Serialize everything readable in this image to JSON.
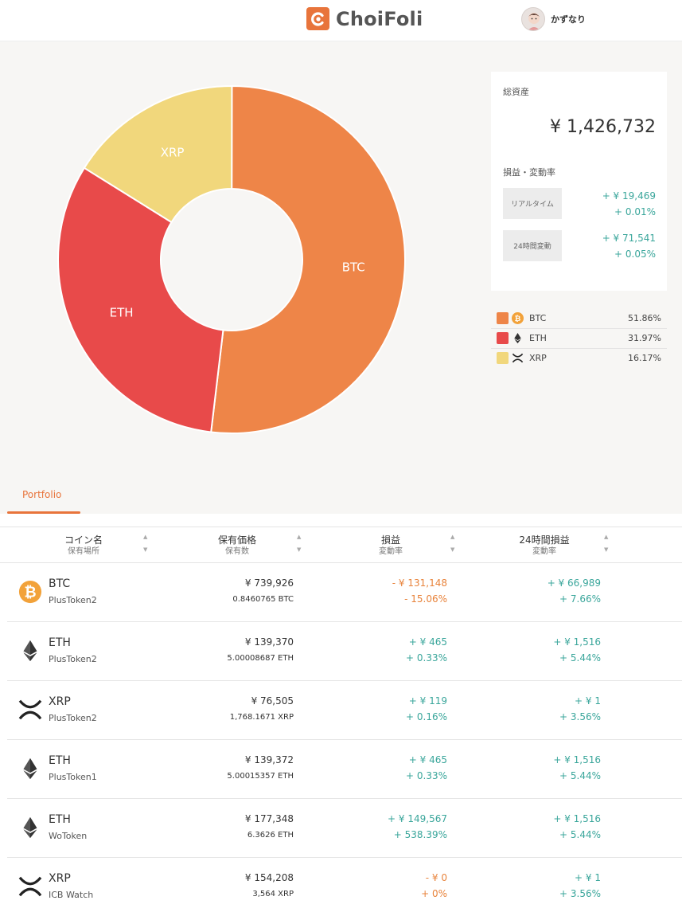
{
  "header": {
    "brand": "ChoiFoli",
    "user_name": "かずなり"
  },
  "colors": {
    "btc": "#ee8548",
    "eth": "#e84a4a",
    "xrp": "#f1d77c",
    "positive": "#3aa69b",
    "negative": "#e8833b",
    "accent": "#e8743b"
  },
  "chart_data": {
    "type": "pie",
    "donut": true,
    "categories": [
      "BTC",
      "ETH",
      "XRP"
    ],
    "values": [
      51.86,
      31.97,
      16.17
    ],
    "colors": [
      "#ee8548",
      "#e84a4a",
      "#f1d77c"
    ],
    "title": "",
    "legend": "right"
  },
  "summary": {
    "total_label": "総資産",
    "total_value": "¥ 1,426,732",
    "change_label": "損益・変動率",
    "realtime_label": "リアルタイム",
    "realtime_amount": "+ ¥ 19,469",
    "realtime_rate": "+ 0.01%",
    "day_label": "24時間変動",
    "day_amount": "+ ¥ 71,541",
    "day_rate": "+ 0.05%"
  },
  "legend": [
    {
      "symbol": "BTC",
      "icon": "bitcoin-icon",
      "percent": "51.86%"
    },
    {
      "symbol": "ETH",
      "icon": "ethereum-icon",
      "percent": "31.97%"
    },
    {
      "symbol": "XRP",
      "icon": "xrp-icon",
      "percent": "16.17%"
    }
  ],
  "tabs": {
    "portfolio": "Portfolio"
  },
  "table": {
    "headers": [
      {
        "main": "コイン名",
        "sub": "保有場所"
      },
      {
        "main": "保有価格",
        "sub": "保有数"
      },
      {
        "main": "損益",
        "sub": "変動率"
      },
      {
        "main": "24時間損益",
        "sub": "変動率"
      }
    ],
    "rows": [
      {
        "symbol": "BTC",
        "icon": "bitcoin-icon",
        "place": "PlusToken2",
        "value": "¥ 739,926",
        "amount": "0.8460765 BTC",
        "pl": "- ¥ 131,148",
        "pl_rate": "- 15.06%",
        "pl_dir": "neg",
        "d_pl": "+ ¥ 66,989",
        "d_rate": "+ 7.66%",
        "d_dir": "pos"
      },
      {
        "symbol": "ETH",
        "icon": "ethereum-icon",
        "place": "PlusToken2",
        "value": "¥ 139,370",
        "amount": "5.00008687 ETH",
        "pl": "+ ¥ 465",
        "pl_rate": "+ 0.33%",
        "pl_dir": "pos",
        "d_pl": "+ ¥ 1,516",
        "d_rate": "+ 5.44%",
        "d_dir": "pos"
      },
      {
        "symbol": "XRP",
        "icon": "xrp-icon",
        "place": "PlusToken2",
        "value": "¥ 76,505",
        "amount": "1,768.1671 XRP",
        "pl": "+ ¥ 119",
        "pl_rate": "+ 0.16%",
        "pl_dir": "pos",
        "d_pl": "+ ¥ 1",
        "d_rate": "+ 3.56%",
        "d_dir": "pos"
      },
      {
        "symbol": "ETH",
        "icon": "ethereum-icon",
        "place": "PlusToken1",
        "value": "¥ 139,372",
        "amount": "5.00015357 ETH",
        "pl": "+ ¥ 465",
        "pl_rate": "+ 0.33%",
        "pl_dir": "pos",
        "d_pl": "+ ¥ 1,516",
        "d_rate": "+ 5.44%",
        "d_dir": "pos"
      },
      {
        "symbol": "ETH",
        "icon": "ethereum-icon",
        "place": "WoToken",
        "value": "¥ 177,348",
        "amount": "6.3626 ETH",
        "pl": "+ ¥ 149,567",
        "pl_rate": "+ 538.39%",
        "pl_dir": "pos",
        "d_pl": "+ ¥ 1,516",
        "d_rate": "+ 5.44%",
        "d_dir": "pos"
      },
      {
        "symbol": "XRP",
        "icon": "xrp-icon",
        "place": "ICB Watch",
        "value": "¥ 154,208",
        "amount": "3,564 XRP",
        "pl": "- ¥ 0",
        "pl_rate": "+ 0%",
        "pl_dir": "neg",
        "d_pl": "+ ¥ 1",
        "d_rate": "+ 3.56%",
        "d_dir": "pos"
      }
    ]
  }
}
